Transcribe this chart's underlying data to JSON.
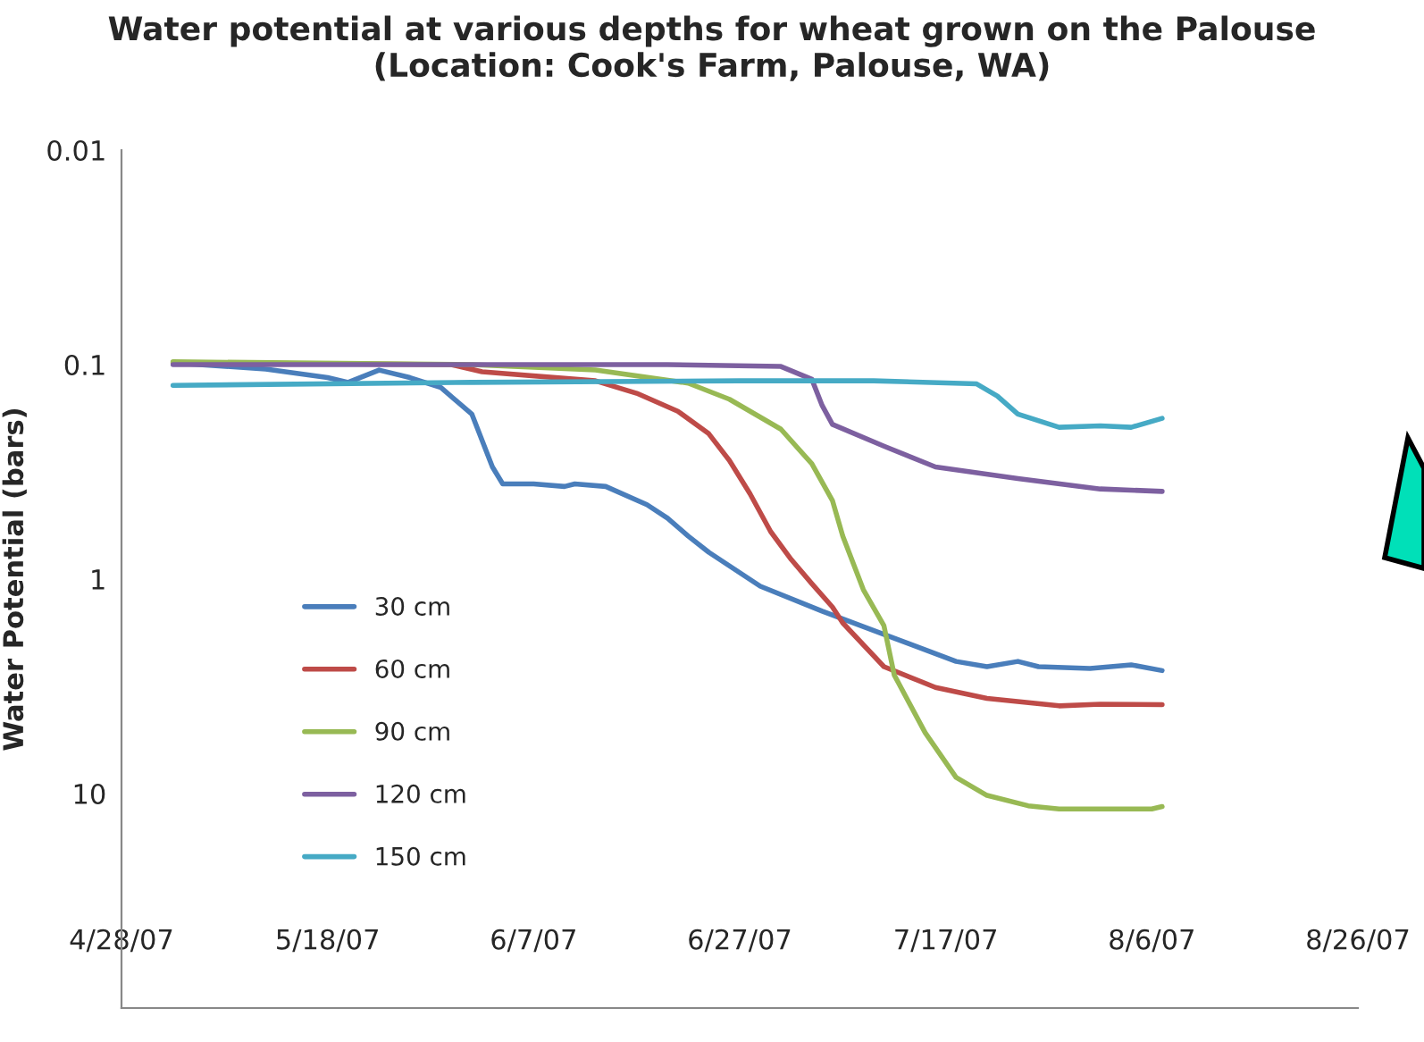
{
  "chart_data": {
    "type": "line",
    "title": "Water potential at various depths for wheat grown on the Palouse\n(Location: Cook's Farm, Palouse, WA)",
    "ylabel": "Water Potential (bars)",
    "log": "y",
    "grid": false,
    "legend": "left",
    "marker": "none",
    "line_style": "solid",
    "ylim": [
      100,
      0.01
    ],
    "yticks": [
      0.01,
      0.1,
      1,
      10
    ],
    "xlim": [
      "2007-04-28",
      "2007-08-26"
    ],
    "xticks": [
      {
        "value": "2007-04-28",
        "label": "4/28/07"
      },
      {
        "value": "2007-05-18",
        "label": "5/18/07"
      },
      {
        "value": "2007-06-07",
        "label": "6/7/07"
      },
      {
        "value": "2007-06-27",
        "label": "6/27/07"
      },
      {
        "value": "2007-07-17",
        "label": "7/17/07"
      },
      {
        "value": "2007-08-06",
        "label": "8/6/07"
      },
      {
        "value": "2007-08-26",
        "label": "8/26/07"
      }
    ],
    "series": [
      {
        "name": "30 cm",
        "color": "#4a7ebb",
        "x": [
          "2007-05-03",
          "2007-05-12",
          "2007-05-18",
          "2007-05-20",
          "2007-05-23",
          "2007-05-26",
          "2007-05-29",
          "2007-06-01",
          "2007-06-03",
          "2007-06-04",
          "2007-06-07",
          "2007-06-10",
          "2007-06-11",
          "2007-06-14",
          "2007-06-18",
          "2007-06-20",
          "2007-06-22",
          "2007-06-24",
          "2007-06-29",
          "2007-07-05",
          "2007-07-11",
          "2007-07-18",
          "2007-07-21",
          "2007-07-24",
          "2007-07-26",
          "2007-07-31",
          "2007-08-04",
          "2007-08-07"
        ],
        "values": [
          0.098,
          0.105,
          0.115,
          0.121,
          0.106,
          0.115,
          0.128,
          0.17,
          0.3,
          0.36,
          0.36,
          0.37,
          0.36,
          0.37,
          0.45,
          0.52,
          0.63,
          0.75,
          1.08,
          1.41,
          1.81,
          2.42,
          2.56,
          2.42,
          2.56,
          2.61,
          2.51,
          2.67
        ]
      },
      {
        "name": "60 cm",
        "color": "#be4b48",
        "x": [
          "2007-05-03",
          "2007-05-30",
          "2007-06-02",
          "2007-06-13",
          "2007-06-17",
          "2007-06-21",
          "2007-06-24",
          "2007-06-26",
          "2007-06-28",
          "2007-06-30",
          "2007-07-02",
          "2007-07-04",
          "2007-07-06",
          "2007-07-07",
          "2007-07-11",
          "2007-07-16",
          "2007-07-21",
          "2007-07-28",
          "2007-08-01",
          "2007-08-07"
        ],
        "values": [
          0.098,
          0.1,
          0.108,
          0.119,
          0.136,
          0.165,
          0.21,
          0.28,
          0.4,
          0.6,
          0.81,
          1.05,
          1.35,
          1.6,
          2.56,
          3.2,
          3.6,
          3.9,
          3.83,
          3.85
        ]
      },
      {
        "name": "90 cm",
        "color": "#98b954",
        "x": [
          "2007-05-03",
          "2007-06-01",
          "2007-06-13",
          "2007-06-22",
          "2007-06-26",
          "2007-07-01",
          "2007-07-04",
          "2007-07-06",
          "2007-07-07",
          "2007-07-09",
          "2007-07-11",
          "2007-07-12",
          "2007-07-15",
          "2007-07-18",
          "2007-07-21",
          "2007-07-25",
          "2007-07-28",
          "2007-08-06",
          "2007-08-07"
        ],
        "values": [
          0.097,
          0.1,
          0.106,
          0.122,
          0.145,
          0.2,
          0.29,
          0.43,
          0.63,
          1.12,
          1.65,
          2.8,
          5.2,
          8.4,
          10.2,
          11.4,
          11.8,
          11.8,
          11.5
        ]
      },
      {
        "name": "120 cm",
        "color": "#7d60a0",
        "x": [
          "2007-05-03",
          "2007-06-20",
          "2007-07-01",
          "2007-07-04",
          "2007-07-05",
          "2007-07-06",
          "2007-07-11",
          "2007-07-16",
          "2007-07-24",
          "2007-08-01",
          "2007-08-07"
        ],
        "values": [
          0.1,
          0.1,
          0.102,
          0.117,
          0.155,
          0.19,
          0.24,
          0.3,
          0.34,
          0.38,
          0.39
        ]
      },
      {
        "name": "150 cm",
        "color": "#46aac5",
        "x": [
          "2007-05-03",
          "2007-06-01",
          "2007-06-27",
          "2007-07-10",
          "2007-07-20",
          "2007-07-22",
          "2007-07-24",
          "2007-07-28",
          "2007-08-01",
          "2007-08-04",
          "2007-08-07"
        ],
        "values": [
          0.125,
          0.121,
          0.119,
          0.119,
          0.123,
          0.14,
          0.17,
          0.196,
          0.193,
          0.196,
          0.178
        ]
      }
    ]
  }
}
